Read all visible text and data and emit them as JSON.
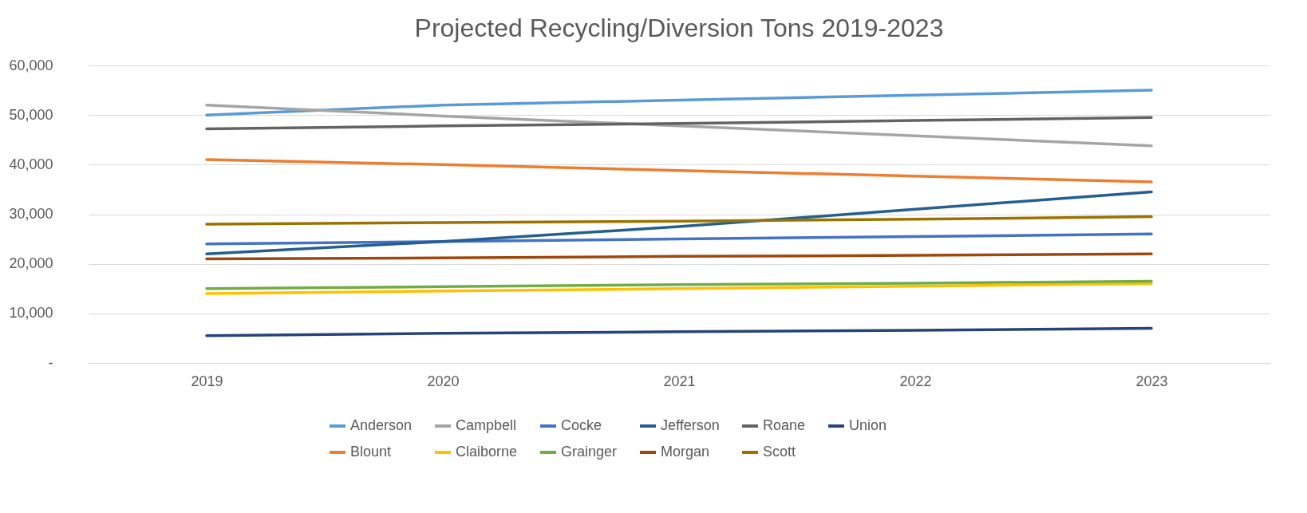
{
  "chart_data": {
    "type": "line",
    "title": "Projected Recycling/Diversion Tons 2019-2023",
    "categories": [
      "2019",
      "2020",
      "2021",
      "2022",
      "2023"
    ],
    "ylim": [
      0,
      60000
    ],
    "yticks": [
      {
        "value": 0,
        "label": "-"
      },
      {
        "value": 10000,
        "label": "10,000"
      },
      {
        "value": 20000,
        "label": "20,000"
      },
      {
        "value": 30000,
        "label": "30,000"
      },
      {
        "value": 40000,
        "label": "40,000"
      },
      {
        "value": 50000,
        "label": "50,000"
      },
      {
        "value": 60000,
        "label": "60,000"
      }
    ],
    "grid": "y",
    "legend": "bottom",
    "marker": "none",
    "line_style": "solid",
    "series": [
      {
        "name": "Anderson",
        "color": "#5b9bd5",
        "values": [
          50000,
          52000,
          53000,
          54000,
          55000
        ]
      },
      {
        "name": "Blount",
        "color": "#ed7d31",
        "values": [
          41000,
          40000,
          38800,
          37700,
          36500
        ]
      },
      {
        "name": "Campbell",
        "color": "#a5a5a5",
        "values": [
          52000,
          49800,
          47800,
          45800,
          43800
        ]
      },
      {
        "name": "Claiborne",
        "color": "#ffc000",
        "values": [
          14000,
          14500,
          15000,
          15500,
          16000
        ]
      },
      {
        "name": "Cocke",
        "color": "#4472c4",
        "values": [
          24000,
          24500,
          25000,
          25500,
          26000
        ]
      },
      {
        "name": "Grainger",
        "color": "#70ad47",
        "values": [
          15000,
          15400,
          15800,
          16100,
          16500
        ]
      },
      {
        "name": "Jefferson",
        "color": "#255e91",
        "values": [
          22000,
          24500,
          27500,
          31000,
          34500
        ]
      },
      {
        "name": "Morgan",
        "color": "#9e480e",
        "values": [
          21000,
          21200,
          21500,
          21700,
          22000
        ]
      },
      {
        "name": "Roane",
        "color": "#636363",
        "values": [
          47200,
          47800,
          48300,
          48900,
          49500
        ]
      },
      {
        "name": "Scott",
        "color": "#997300",
        "values": [
          28000,
          28300,
          28600,
          29000,
          29500
        ]
      },
      {
        "name": "Union",
        "color": "#264478",
        "values": [
          5500,
          6000,
          6300,
          6600,
          7000
        ]
      }
    ]
  }
}
